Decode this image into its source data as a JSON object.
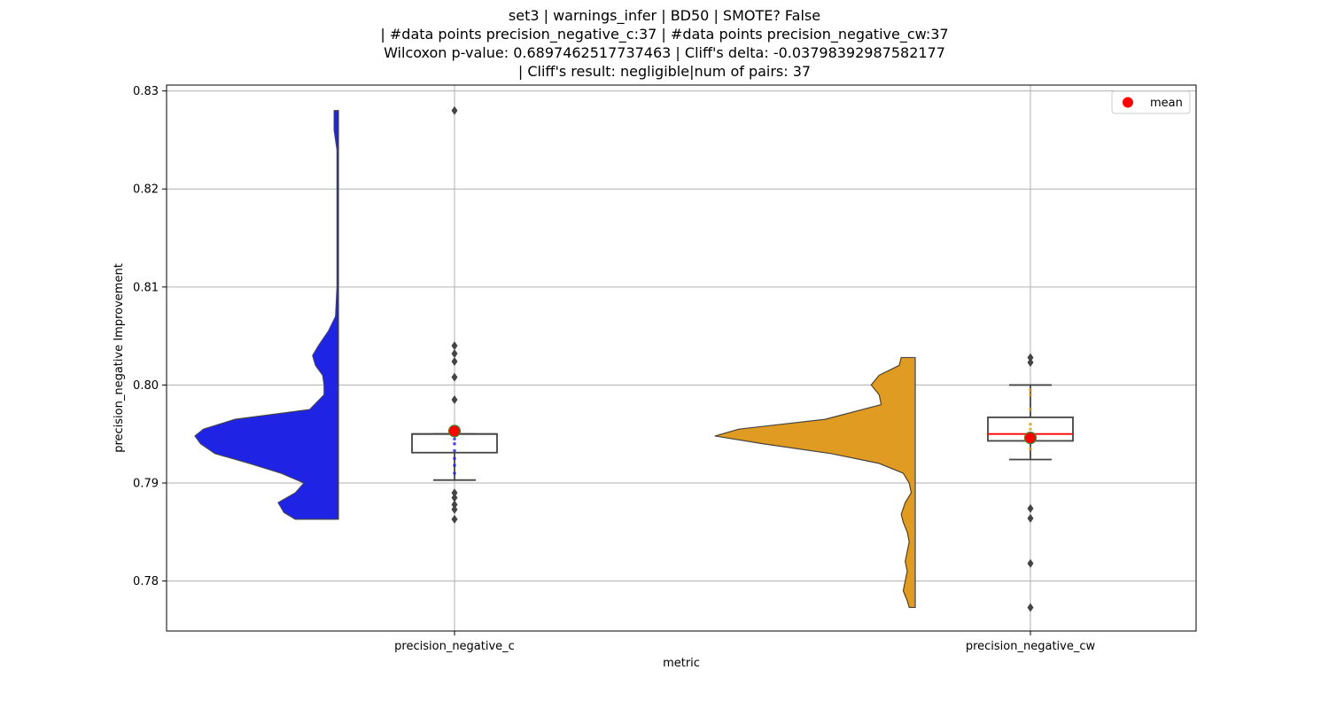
{
  "chart_data": {
    "type": "violin+box",
    "title_lines": [
      "set3 | warnings_infer | BD50 | SMOTE? False",
      "| #data points precision_negative_c:37 | #data points precision_negative_cw:37",
      "Wilcoxon p-value: 0.6897462517737463 | Cliff's delta: -0.03798392987582177",
      "| Cliff's result: negligible|num of pairs: 37"
    ],
    "xlabel": "metric",
    "ylabel": "precision_negative Improvement",
    "categories": [
      "precision_negative_c",
      "precision_negative_cw"
    ],
    "yticks": [
      0.78,
      0.79,
      0.8,
      0.81,
      0.82,
      0.83
    ],
    "ytick_labels": [
      "0.78",
      "0.79",
      "0.80",
      "0.81",
      "0.82",
      "0.83"
    ],
    "ylim": [
      0.7749,
      0.8306
    ],
    "grid": true,
    "legend": {
      "position": "top-right",
      "entries": [
        {
          "label": "mean",
          "color": "#ff0000"
        }
      ]
    },
    "colors": {
      "precision_negative_c": "#1f23e3",
      "precision_negative_cw": "#e09b22",
      "mean": "#ff0000",
      "median_cw": "#ff0000",
      "outlier": "#444444",
      "box_edge": "#444444"
    },
    "series": [
      {
        "category": "precision_negative_c",
        "violin_profile": [
          [
            0.7863,
            0.3
          ],
          [
            0.787,
            0.38
          ],
          [
            0.788,
            0.42
          ],
          [
            0.789,
            0.3
          ],
          [
            0.79,
            0.24
          ],
          [
            0.791,
            0.4
          ],
          [
            0.792,
            0.62
          ],
          [
            0.793,
            0.86
          ],
          [
            0.794,
            0.96
          ],
          [
            0.7948,
            1.0
          ],
          [
            0.7955,
            0.94
          ],
          [
            0.7965,
            0.72
          ],
          [
            0.7975,
            0.2
          ],
          [
            0.799,
            0.1
          ],
          [
            0.8,
            0.1
          ],
          [
            0.801,
            0.11
          ],
          [
            0.802,
            0.16
          ],
          [
            0.803,
            0.18
          ],
          [
            0.804,
            0.14
          ],
          [
            0.8055,
            0.07
          ],
          [
            0.807,
            0.02
          ],
          [
            0.81,
            0.01
          ],
          [
            0.82,
            0.01
          ],
          [
            0.824,
            0.01
          ],
          [
            0.826,
            0.03
          ],
          [
            0.828,
            0.03
          ]
        ],
        "box": {
          "q1": 0.7931,
          "median": 0.795,
          "q3": 0.795,
          "whisker_low": 0.7903,
          "whisker_high": 0.795
        },
        "mean": 0.7953,
        "outliers": [
          0.828,
          0.804,
          0.8032,
          0.8024,
          0.8008,
          0.7985,
          0.789,
          0.7885,
          0.7878,
          0.7873,
          0.7863
        ],
        "points": [
          0.7918,
          0.7925,
          0.791,
          0.7933,
          0.794,
          0.7945
        ]
      },
      {
        "category": "precision_negative_cw",
        "violin_profile": [
          [
            0.7773,
            0.03
          ],
          [
            0.778,
            0.04
          ],
          [
            0.779,
            0.06
          ],
          [
            0.78,
            0.05
          ],
          [
            0.781,
            0.04
          ],
          [
            0.782,
            0.05
          ],
          [
            0.783,
            0.04
          ],
          [
            0.784,
            0.03
          ],
          [
            0.785,
            0.04
          ],
          [
            0.786,
            0.06
          ],
          [
            0.7868,
            0.07
          ],
          [
            0.788,
            0.05
          ],
          [
            0.789,
            0.02
          ],
          [
            0.79,
            0.03
          ],
          [
            0.791,
            0.06
          ],
          [
            0.792,
            0.18
          ],
          [
            0.793,
            0.42
          ],
          [
            0.794,
            0.76
          ],
          [
            0.7948,
            1.0
          ],
          [
            0.7955,
            0.88
          ],
          [
            0.7965,
            0.45
          ],
          [
            0.798,
            0.17
          ],
          [
            0.799,
            0.18
          ],
          [
            0.8,
            0.22
          ],
          [
            0.801,
            0.18
          ],
          [
            0.802,
            0.08
          ],
          [
            0.8028,
            0.07
          ]
        ],
        "box": {
          "q1": 0.7943,
          "median": 0.795,
          "q3": 0.7967,
          "whisker_low": 0.7924,
          "whisker_high": 0.8
        },
        "mean": 0.7946,
        "outliers": [
          0.8028,
          0.8023,
          0.7874,
          0.7864,
          0.7818,
          0.7773
        ],
        "points": [
          0.7935,
          0.7945,
          0.7955,
          0.796,
          0.7975,
          0.799,
          0.7995
        ]
      }
    ]
  }
}
